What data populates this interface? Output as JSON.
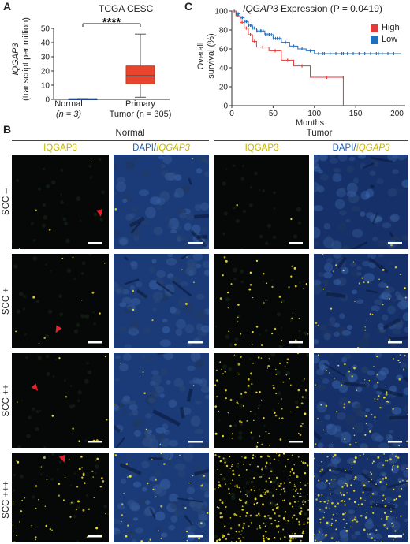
{
  "panel_a": {
    "label": "A",
    "title": "TCGA CESC",
    "ylabel_gene": "IQGAP3",
    "ylabel_unit": "(transcript per million)",
    "significance": "****",
    "yticks": [
      "0",
      "10",
      "20",
      "30",
      "40",
      "50"
    ],
    "groups": [
      {
        "name": "Normal",
        "n": "(n = 3)"
      },
      {
        "name": "Primary",
        "n": "Tumor (n = 305)"
      }
    ],
    "box_color": "#e8452c"
  },
  "panel_c": {
    "label": "C",
    "title_gene": "IQGAP3",
    "title_rest": "Expression (P = 0.0419)",
    "ylabel1": "Overall",
    "ylabel2": "survival (%)",
    "xlabel": "Months",
    "yticks": [
      "0",
      "20",
      "40",
      "60",
      "80",
      "100"
    ],
    "xticks": [
      "0",
      "50",
      "100",
      "150",
      "200"
    ],
    "legend": [
      {
        "name": "High",
        "color": "#e03a3a"
      },
      {
        "name": "Low",
        "color": "#1f6fc0"
      }
    ]
  },
  "panel_b": {
    "label": "B",
    "group_normal": "Normal",
    "group_tumor": "Tumor",
    "col_gene": "IQGAP3",
    "col_dapi": "DAPI/",
    "rows": [
      "SCC –",
      "SCC +",
      "SCC ++",
      "SCC +++"
    ]
  },
  "chart_data": [
    {
      "type": "box",
      "title": "TCGA CESC",
      "ylabel": "IQGAP3 (transcript per million)",
      "categories": [
        "Normal (n = 3)",
        "Primary Tumor (n = 305)"
      ],
      "ylim": [
        0,
        50
      ],
      "boxes": [
        {
          "name": "Normal",
          "min": 0.1,
          "q1": 0.2,
          "median": 0.3,
          "q3": 0.4,
          "max": 0.5
        },
        {
          "name": "Primary Tumor",
          "min": 1.5,
          "q1": 11,
          "median": 16.5,
          "q3": 23.5,
          "max": 46
        }
      ]
    },
    {
      "type": "line",
      "title": "IQGAP3 Expression (P = 0.0419)",
      "xlabel": "Months",
      "ylabel": "Overall survival (%)",
      "xlim": [
        0,
        210
      ],
      "ylim": [
        0,
        100
      ],
      "series": [
        {
          "name": "High",
          "x": [
            0,
            5,
            10,
            15,
            20,
            25,
            30,
            45,
            60,
            75,
            95,
            135,
            135
          ],
          "y": [
            100,
            95,
            88,
            82,
            75,
            68,
            62,
            58,
            48,
            42,
            30,
            30,
            0
          ]
        },
        {
          "name": "Low",
          "x": [
            0,
            5,
            10,
            15,
            20,
            25,
            30,
            40,
            50,
            60,
            70,
            80,
            90,
            100,
            120,
            150,
            205
          ],
          "y": [
            100,
            97,
            93,
            89,
            85,
            82,
            79,
            75,
            71,
            67,
            63,
            60,
            58,
            55,
            55,
            55,
            55
          ]
        }
      ]
    }
  ]
}
